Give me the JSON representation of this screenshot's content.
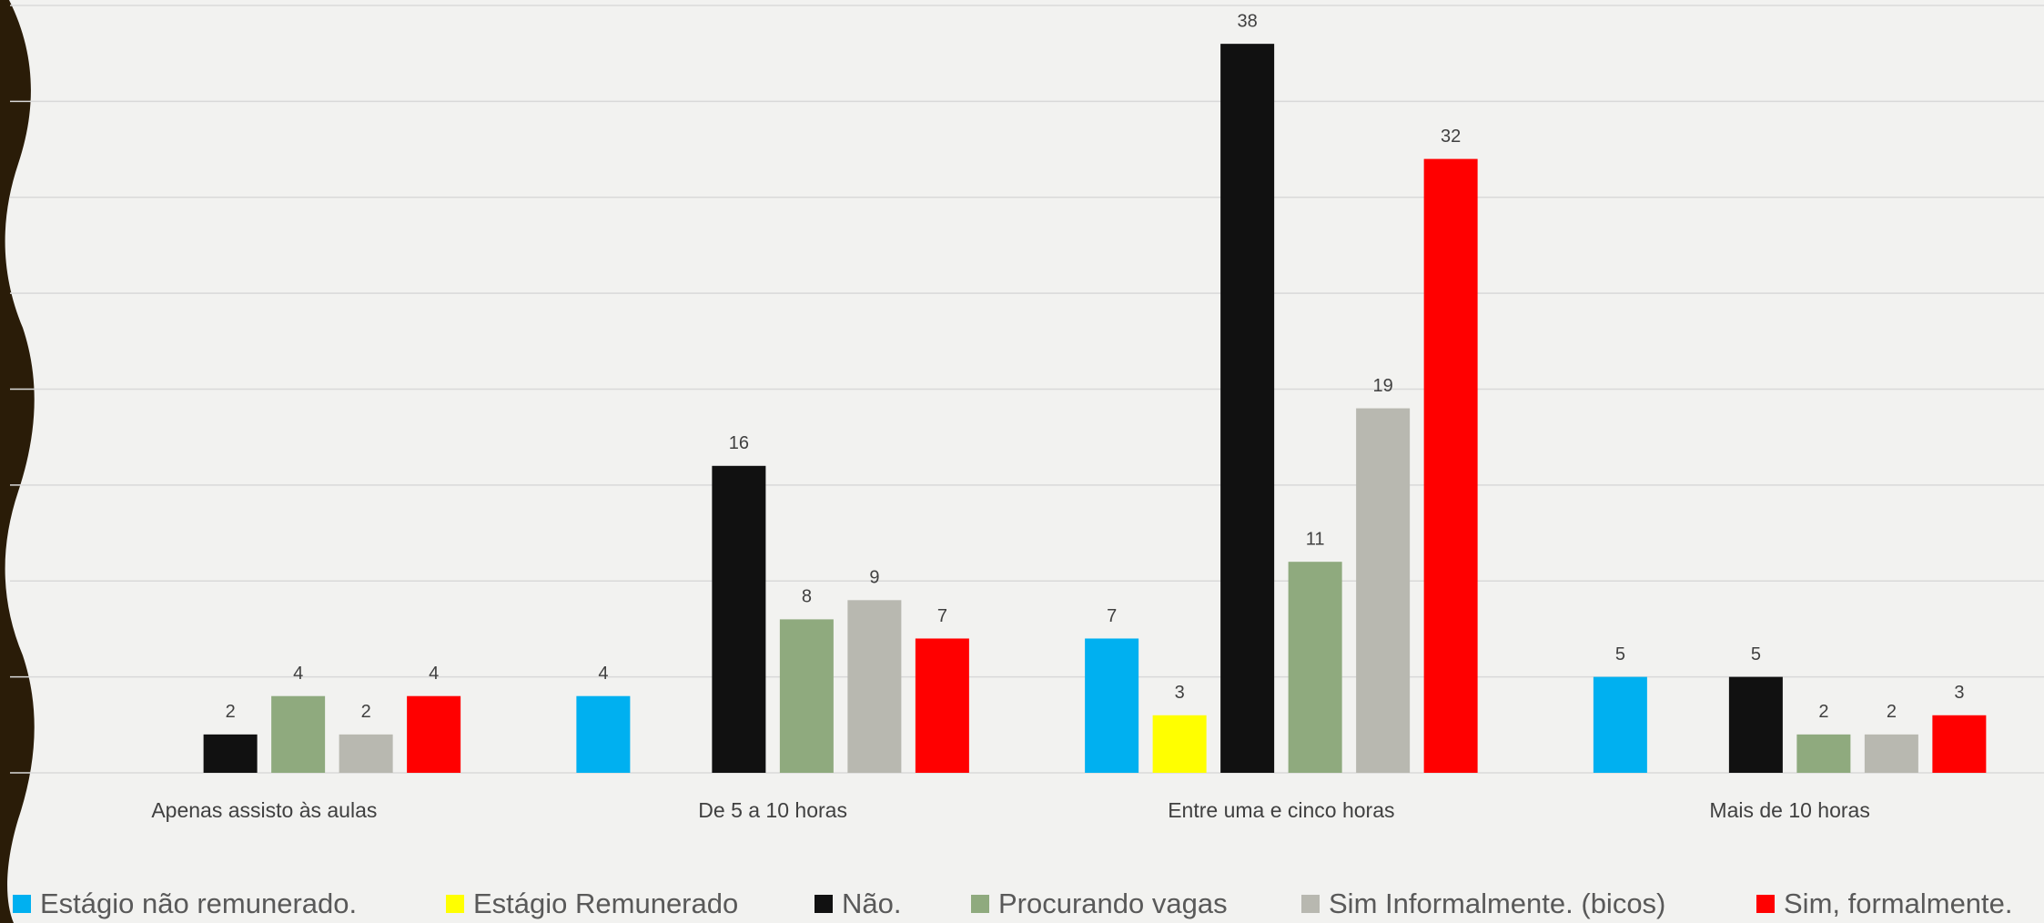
{
  "chart_data": {
    "type": "bar",
    "categories": [
      "Apenas assisto às aulas",
      "De 5 a 10 horas",
      "Entre uma e cinco horas",
      "Mais de 10 horas"
    ],
    "series": [
      {
        "name": "Estágio não remunerado.",
        "color": "#00b0f0",
        "values": [
          null,
          4,
          7,
          5
        ]
      },
      {
        "name": "Estágio Remunerado",
        "color": "#ffff00",
        "values": [
          null,
          null,
          3,
          null
        ]
      },
      {
        "name": "Não.",
        "color": "#111111",
        "values": [
          2,
          16,
          38,
          5
        ]
      },
      {
        "name": "Procurando vagas",
        "color": "#8faa7e",
        "values": [
          4,
          8,
          11,
          2
        ]
      },
      {
        "name": "Sim Informalmente. (bicos)",
        "color": "#b8b8b0",
        "values": [
          2,
          9,
          19,
          2
        ]
      },
      {
        "name": "Sim, formalmente.",
        "color": "#ff0000",
        "values": [
          4,
          7,
          32,
          3
        ]
      }
    ],
    "ylim": [
      0,
      40
    ],
    "yticks": [
      0,
      5,
      10,
      15,
      20,
      25,
      30,
      35,
      40
    ],
    "grid": true,
    "legend": "bottom"
  }
}
